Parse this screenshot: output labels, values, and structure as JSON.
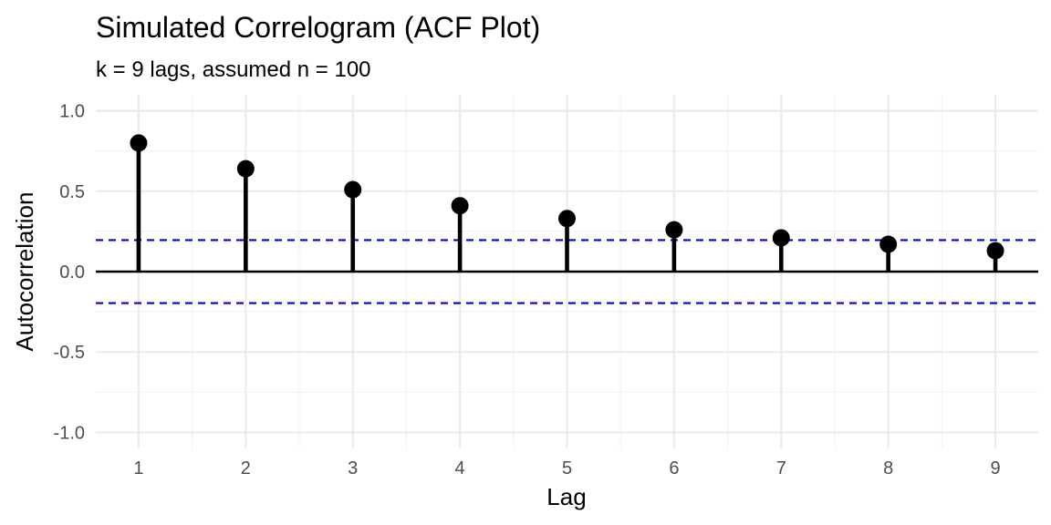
{
  "chart_data": {
    "type": "stem",
    "title": "Simulated Correlogram (ACF Plot)",
    "subtitle": "k = 9 lags, assumed n = 100",
    "xlabel": "Lag",
    "ylabel": "Autocorrelation",
    "x": [
      1,
      2,
      3,
      4,
      5,
      6,
      7,
      8,
      9
    ],
    "values": [
      0.8,
      0.64,
      0.51,
      0.41,
      0.33,
      0.26,
      0.21,
      0.17,
      0.13
    ],
    "xlim": [
      0.6,
      9.4
    ],
    "ylim": [
      -1.1,
      1.1
    ],
    "x_ticks": [
      "1",
      "2",
      "3",
      "4",
      "5",
      "6",
      "7",
      "8",
      "9"
    ],
    "y_ticks": [
      -1.0,
      -0.5,
      0.0,
      0.5,
      1.0
    ],
    "y_tick_labels": [
      "-1.0",
      "-0.5",
      "0.0",
      "0.5",
      "1.0"
    ],
    "confidence_band": [
      -0.196,
      0.196
    ],
    "confidence_color": "#0000CD",
    "zero_line": 0,
    "stem_color": "#000000",
    "grid": true,
    "legend": "none"
  }
}
